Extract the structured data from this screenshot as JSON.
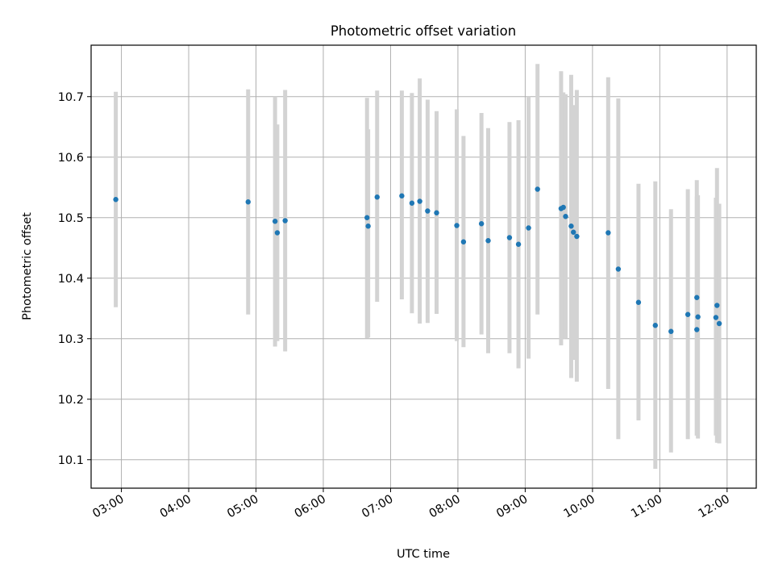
{
  "chart_data": {
    "type": "scatter",
    "title": "Photometric offset variation",
    "xlabel": "UTC time",
    "ylabel": "Photometric offset",
    "grid": true,
    "x_ticks": [
      "03:00",
      "04:00",
      "05:00",
      "06:00",
      "07:00",
      "08:00",
      "09:00",
      "10:00",
      "11:00",
      "12:00"
    ],
    "y_ticks": [
      "10.1",
      "10.2",
      "10.3",
      "10.4",
      "10.5",
      "10.6",
      "10.7"
    ],
    "xlim": [
      "02:33",
      "12:26"
    ],
    "ylim": [
      10.053,
      10.785
    ],
    "colors": {
      "points": "#1f77b4",
      "errorbars": "#d3d3d3",
      "grid": "#b0b0b0"
    },
    "points": [
      {
        "x": "02:55",
        "y": 10.53,
        "ylow": 10.352,
        "yhigh": 10.708
      },
      {
        "x": "04:53",
        "y": 10.526,
        "ylow": 10.34,
        "yhigh": 10.712
      },
      {
        "x": "05:17",
        "y": 10.494,
        "ylow": 10.287,
        "yhigh": 10.7
      },
      {
        "x": "05:19",
        "y": 10.475,
        "ylow": 10.296,
        "yhigh": 10.654
      },
      {
        "x": "05:26",
        "y": 10.495,
        "ylow": 10.279,
        "yhigh": 10.711
      },
      {
        "x": "06:39",
        "y": 10.5,
        "ylow": 10.301,
        "yhigh": 10.698
      },
      {
        "x": "06:40",
        "y": 10.486,
        "ylow": 10.302,
        "yhigh": 10.646
      },
      {
        "x": "06:48",
        "y": 10.534,
        "ylow": 10.361,
        "yhigh": 10.71
      },
      {
        "x": "07:10",
        "y": 10.536,
        "ylow": 10.365,
        "yhigh": 10.71
      },
      {
        "x": "07:19",
        "y": 10.524,
        "ylow": 10.342,
        "yhigh": 10.706
      },
      {
        "x": "07:26",
        "y": 10.527,
        "ylow": 10.325,
        "yhigh": 10.73
      },
      {
        "x": "07:33",
        "y": 10.511,
        "ylow": 10.326,
        "yhigh": 10.695
      },
      {
        "x": "07:41",
        "y": 10.508,
        "ylow": 10.341,
        "yhigh": 10.676
      },
      {
        "x": "07:59",
        "y": 10.487,
        "ylow": 10.296,
        "yhigh": 10.679
      },
      {
        "x": "08:05",
        "y": 10.46,
        "ylow": 10.286,
        "yhigh": 10.635
      },
      {
        "x": "08:21",
        "y": 10.49,
        "ylow": 10.307,
        "yhigh": 10.673
      },
      {
        "x": "08:27",
        "y": 10.462,
        "ylow": 10.276,
        "yhigh": 10.648
      },
      {
        "x": "08:46",
        "y": 10.467,
        "ylow": 10.276,
        "yhigh": 10.658
      },
      {
        "x": "08:54",
        "y": 10.456,
        "ylow": 10.251,
        "yhigh": 10.661
      },
      {
        "x": "09:03",
        "y": 10.483,
        "ylow": 10.267,
        "yhigh": 10.7
      },
      {
        "x": "09:11",
        "y": 10.547,
        "ylow": 10.34,
        "yhigh": 10.754
      },
      {
        "x": "09:32",
        "y": 10.515,
        "ylow": 10.289,
        "yhigh": 10.742
      },
      {
        "x": "09:34",
        "y": 10.517,
        "ylow": 10.3,
        "yhigh": 10.707
      },
      {
        "x": "09:36",
        "y": 10.502,
        "ylow": 10.3,
        "yhigh": 10.704
      },
      {
        "x": "09:41",
        "y": 10.486,
        "ylow": 10.235,
        "yhigh": 10.736
      },
      {
        "x": "09:43",
        "y": 10.476,
        "ylow": 10.265,
        "yhigh": 10.686
      },
      {
        "x": "09:46",
        "y": 10.469,
        "ylow": 10.229,
        "yhigh": 10.711
      },
      {
        "x": "10:14",
        "y": 10.475,
        "ylow": 10.217,
        "yhigh": 10.732
      },
      {
        "x": "10:23",
        "y": 10.415,
        "ylow": 10.134,
        "yhigh": 10.697
      },
      {
        "x": "10:41",
        "y": 10.36,
        "ylow": 10.165,
        "yhigh": 10.556
      },
      {
        "x": "10:56",
        "y": 10.322,
        "ylow": 10.085,
        "yhigh": 10.56
      },
      {
        "x": "11:10",
        "y": 10.312,
        "ylow": 10.112,
        "yhigh": 10.514
      },
      {
        "x": "11:25",
        "y": 10.34,
        "ylow": 10.134,
        "yhigh": 10.547
      },
      {
        "x": "11:33",
        "y": 10.368,
        "ylow": 10.14,
        "yhigh": 10.562
      },
      {
        "x": "11:34",
        "y": 10.336,
        "ylow": 10.135,
        "yhigh": 10.537
      },
      {
        "x": "11:33",
        "y": 10.315,
        "ylow": 10.14,
        "yhigh": 10.535
      },
      {
        "x": "11:50",
        "y": 10.335,
        "ylow": 10.14,
        "yhigh": 10.533
      },
      {
        "x": "11:51",
        "y": 10.355,
        "ylow": 10.128,
        "yhigh": 10.582
      },
      {
        "x": "11:53",
        "y": 10.325,
        "ylow": 10.127,
        "yhigh": 10.523
      }
    ]
  }
}
